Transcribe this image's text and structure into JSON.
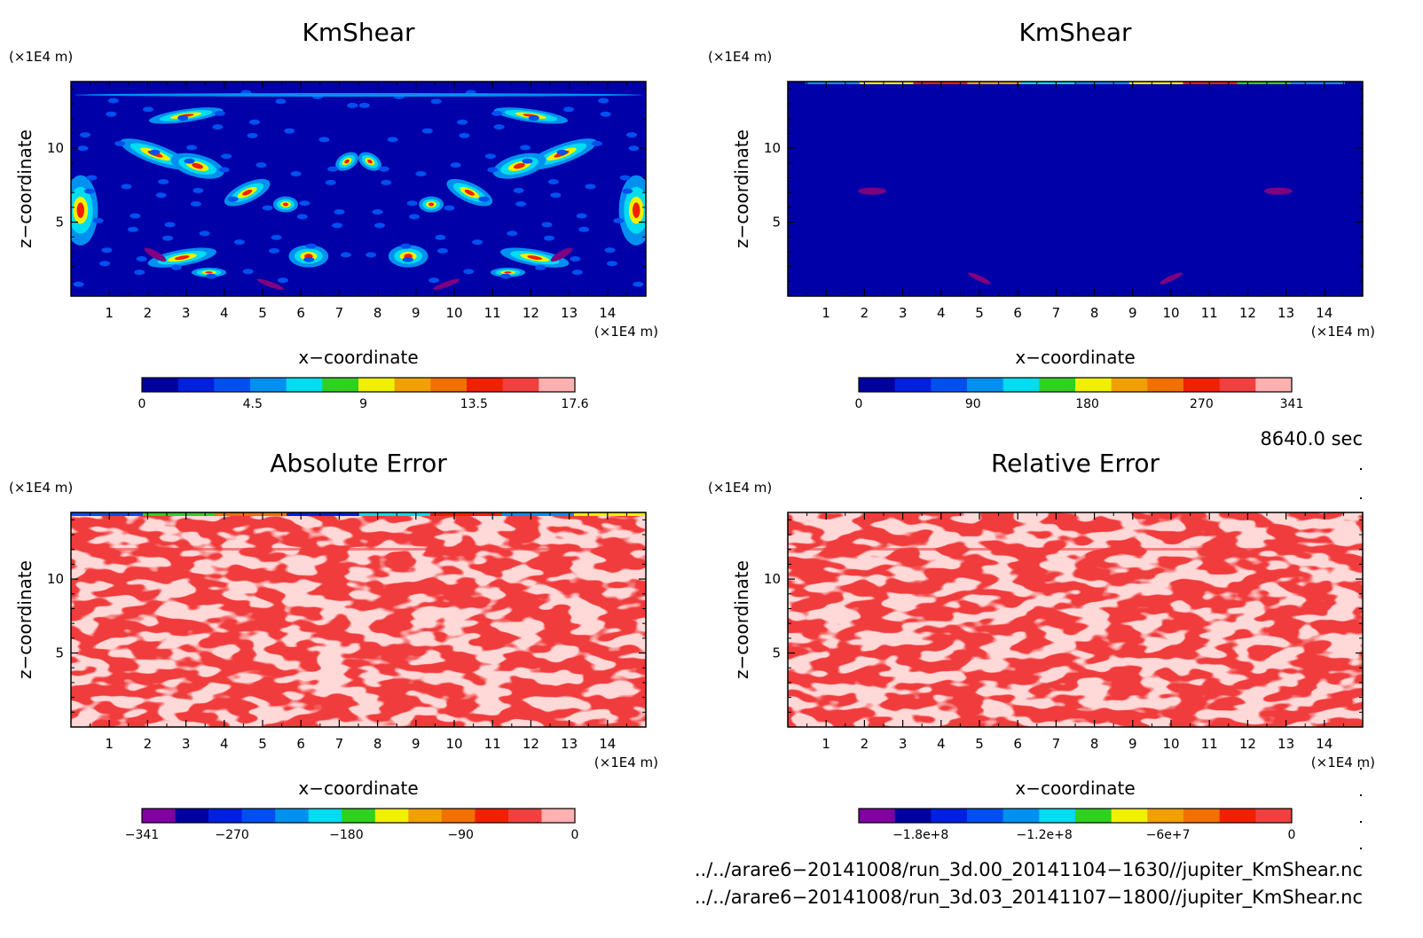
{
  "chart_data": [
    {
      "type": "heatmap",
      "title": "KmShear",
      "xlabel": "x−coordinate",
      "ylabel": "z−coordinate",
      "x_unit": "(×1E4 m)",
      "y_unit": "(×1E4 m)",
      "xlim": [
        0,
        15
      ],
      "ylim": [
        0,
        14.5
      ],
      "xticks": [
        "1",
        "2",
        "3",
        "4",
        "5",
        "6",
        "7",
        "8",
        "9",
        "10",
        "11",
        "12",
        "13",
        "14"
      ],
      "yticks": [
        "5",
        "10"
      ],
      "field": "kmshear_mixed",
      "colorbar": {
        "range": [
          0,
          17.6
        ],
        "labels": [
          "0",
          "4.5",
          "9",
          "13.5",
          "17.6"
        ],
        "label_values": [
          0,
          4.5,
          9,
          13.5,
          17.6
        ],
        "colors": [
          "#0000a0",
          "#0020e0",
          "#0050f0",
          "#0090f0",
          "#00dcf0",
          "#30d020",
          "#f0f000",
          "#f0a000",
          "#f07000",
          "#f02000",
          "#f04040",
          "#ffb0b0"
        ]
      }
    },
    {
      "type": "heatmap",
      "title": "KmShear",
      "xlabel": "x−coordinate",
      "ylabel": "z−coordinate",
      "x_unit": "(×1E4 m)",
      "y_unit": "(×1E4 m)",
      "xlim": [
        0,
        15
      ],
      "ylim": [
        0,
        14.5
      ],
      "xticks": [
        "1",
        "2",
        "3",
        "4",
        "5",
        "6",
        "7",
        "8",
        "9",
        "10",
        "11",
        "12",
        "13",
        "14"
      ],
      "yticks": [
        "5",
        "10"
      ],
      "field": "kmshear_dark",
      "colorbar": {
        "range": [
          0,
          341
        ],
        "labels": [
          "0",
          "90",
          "180",
          "270",
          "341"
        ],
        "label_values": [
          0,
          90,
          180,
          270,
          341
        ],
        "colors": [
          "#0000a0",
          "#0020e0",
          "#0050f0",
          "#0090f0",
          "#00dcf0",
          "#30d020",
          "#f0f000",
          "#f0a000",
          "#f07000",
          "#f02000",
          "#f04040",
          "#ffb0b0"
        ]
      }
    },
    {
      "type": "heatmap",
      "title": "Absolute Error",
      "xlabel": "x−coordinate",
      "ylabel": "z−coordinate",
      "x_unit": "(×1E4 m)",
      "y_unit": "(×1E4 m)",
      "xlim": [
        0,
        15
      ],
      "ylim": [
        0,
        14.5
      ],
      "xticks": [
        "1",
        "2",
        "3",
        "4",
        "5",
        "6",
        "7",
        "8",
        "9",
        "10",
        "11",
        "12",
        "13",
        "14"
      ],
      "yticks": [
        "5",
        "10"
      ],
      "field": "error_red",
      "colorbar": {
        "range": [
          -341,
          0
        ],
        "labels": [
          "−341",
          "−270",
          "−180",
          "−90",
          "0"
        ],
        "label_values": [
          -341,
          -270,
          -180,
          -90,
          0
        ],
        "colors": [
          "#8000a0",
          "#0000a0",
          "#0020e0",
          "#0050f0",
          "#0090f0",
          "#00dcf0",
          "#30d020",
          "#f0f000",
          "#f0a000",
          "#f07000",
          "#f02000",
          "#f04040",
          "#ffb0b0"
        ]
      }
    },
    {
      "type": "heatmap",
      "title": "Relative Error",
      "xlabel": "x−coordinate",
      "ylabel": "z−coordinate",
      "x_unit": "(×1E4 m)",
      "y_unit": "(×1E4 m)",
      "xlim": [
        0,
        15
      ],
      "ylim": [
        0,
        14.5
      ],
      "xticks": [
        "1",
        "2",
        "3",
        "4",
        "5",
        "6",
        "7",
        "8",
        "9",
        "10",
        "11",
        "12",
        "13",
        "14"
      ],
      "yticks": [
        "5",
        "10"
      ],
      "field": "error_red",
      "colorbar": {
        "range": [
          -210000000.0,
          0
        ],
        "labels": [
          "−1.8e+8",
          "−1.2e+8",
          "−6e+7",
          "0"
        ],
        "label_values": [
          -180000000.0,
          -120000000.0,
          -60000000.0,
          0
        ],
        "colors": [
          "#8000a0",
          "#0000a0",
          "#0020e0",
          "#0050f0",
          "#0090f0",
          "#00dcf0",
          "#30d020",
          "#f0f000",
          "#f0a000",
          "#f07000",
          "#f02000",
          "#f04040"
        ]
      }
    }
  ],
  "time_label": "8640.0 sec",
  "file_lines": [
    "../../arare6−20141008/run_3d.00_20141104−1630//jupiter_KmShear.nc",
    "../../arare6−20141008/run_3d.03_20141107−1800//jupiter_KmShear.nc"
  ]
}
